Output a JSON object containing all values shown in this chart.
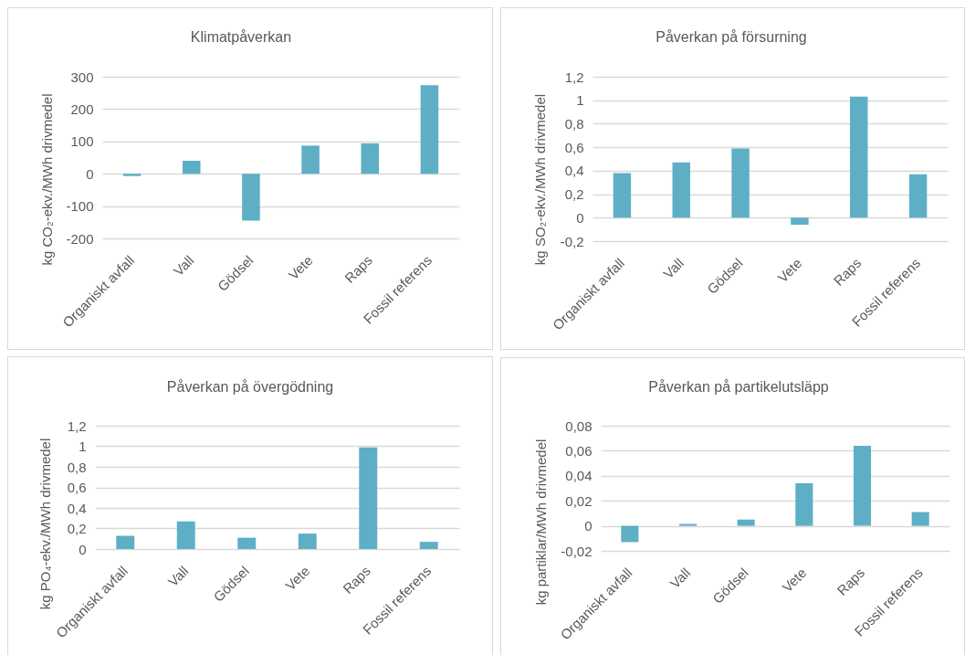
{
  "chart_data": [
    {
      "type": "bar",
      "title": "Klimatpåverkan",
      "ylabel": "kg CO₂-ekv./MWh drivmedel",
      "categories": [
        "Organiskt avfall",
        "Vall",
        "Gödsel",
        "Vete",
        "Raps",
        "Fossil referens"
      ],
      "values": [
        -7,
        40,
        -145,
        87,
        94,
        274
      ],
      "color": "#5eafc6",
      "ylim": [
        -200,
        300
      ],
      "yticks": [
        -200,
        -100,
        0,
        100,
        200,
        300
      ],
      "grid": "y"
    },
    {
      "type": "bar",
      "title": "Påverkan på försurning",
      "ylabel": "kg SO₂-ekv./MWh drivmedel",
      "categories": [
        "Organiskt avfall",
        "Vall",
        "Gödsel",
        "Vete",
        "Raps",
        "Fossil referens"
      ],
      "values": [
        0.38,
        0.47,
        0.59,
        -0.06,
        1.03,
        0.37
      ],
      "color": "#5eafc6",
      "ylim": [
        -0.2,
        1.2
      ],
      "yticks": [
        {
          "value": -0.2,
          "label": "-0,2"
        },
        0,
        {
          "value": 0.2,
          "label": "0,2"
        },
        {
          "value": 0.4,
          "label": "0,4"
        },
        {
          "value": 0.6,
          "label": "0,6"
        },
        {
          "value": 0.8,
          "label": "0,8"
        },
        1,
        {
          "value": 1.2,
          "label": "1,2"
        }
      ],
      "grid": "y"
    },
    {
      "type": "bar",
      "title": "Påverkan på övergödning",
      "ylabel": "kg PO₄-ekv./MWh drivmedel",
      "categories": [
        "Organiskt avfall",
        "Vall",
        "Gödsel",
        "Vete",
        "Raps",
        "Fossil referens"
      ],
      "values": [
        0.13,
        0.27,
        0.11,
        0.15,
        0.99,
        0.07
      ],
      "color": "#5eafc6",
      "ylim": [
        0,
        1.2
      ],
      "yticks": [
        0,
        {
          "value": 0.2,
          "label": "0,2"
        },
        {
          "value": 0.4,
          "label": "0,4"
        },
        {
          "value": 0.6,
          "label": "0,6"
        },
        {
          "value": 0.8,
          "label": "0,8"
        },
        1,
        {
          "value": 1.2,
          "label": "1,2"
        }
      ],
      "grid": "y"
    },
    {
      "type": "bar",
      "title": "Påverkan på partikelutsläpp",
      "ylabel": "kg partiklar/MWh drivmedel",
      "categories": [
        "Organiskt avfall",
        "Vall",
        "Gödsel",
        "Vete",
        "Raps",
        "Fossil referens"
      ],
      "values": [
        -0.013,
        0.0015,
        0.005,
        0.034,
        0.064,
        0.011
      ],
      "color": "#5eafc6",
      "ylim": [
        -0.02,
        0.08
      ],
      "yticks": [
        {
          "value": -0.02,
          "label": "-0,02"
        },
        0,
        {
          "value": 0.02,
          "label": "0,02"
        },
        {
          "value": 0.04,
          "label": "0,04"
        },
        {
          "value": 0.06,
          "label": "0,06"
        },
        {
          "value": 0.08,
          "label": "0,08"
        }
      ],
      "grid": "y"
    }
  ]
}
